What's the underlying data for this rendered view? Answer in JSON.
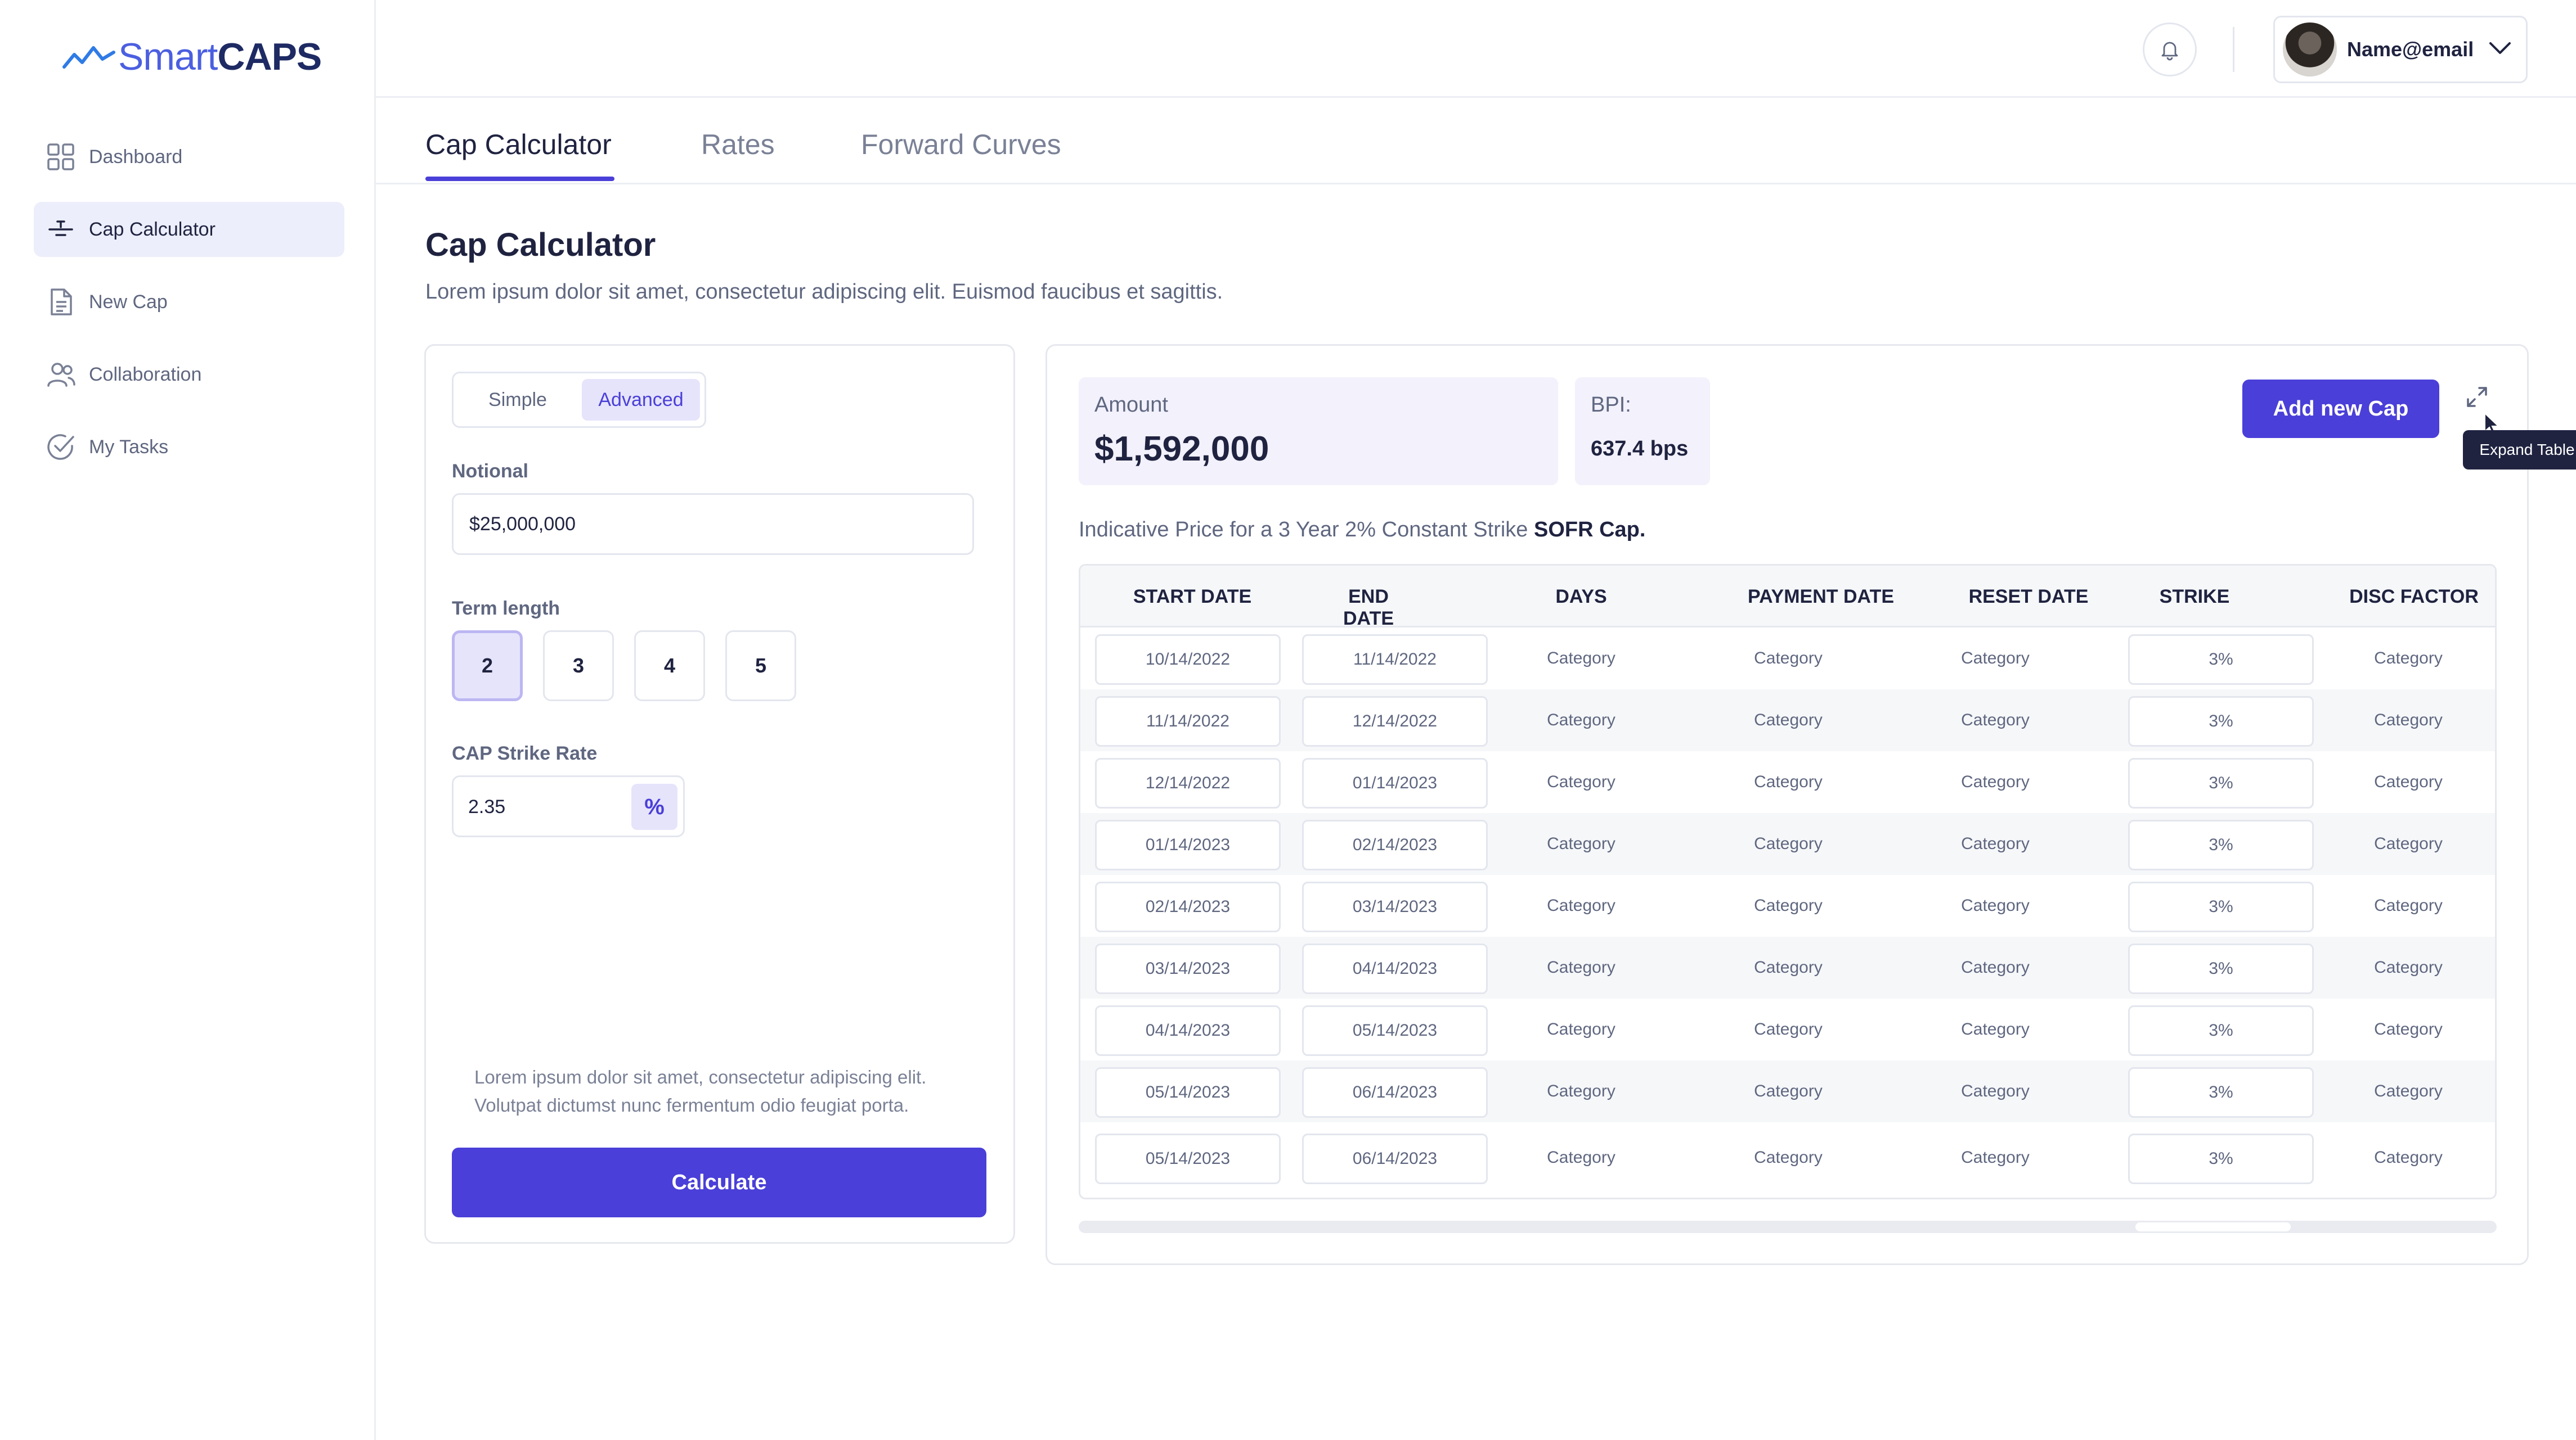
{
  "app": {
    "logo_smart": "Smart",
    "logo_caps": "CAPS"
  },
  "sidebar": {
    "items": [
      {
        "label": "Dashboard",
        "icon": "grid-icon",
        "active": false
      },
      {
        "label": "Cap Calculator",
        "icon": "sliders-icon",
        "active": true
      },
      {
        "label": "New Cap",
        "icon": "document-icon",
        "active": false
      },
      {
        "label": "Collaboration",
        "icon": "users-icon",
        "active": false
      },
      {
        "label": "My Tasks",
        "icon": "check-circle-icon",
        "active": false
      }
    ]
  },
  "header": {
    "user_email": "Name@email"
  },
  "tabs": [
    {
      "label": "Cap Calculator",
      "active": true
    },
    {
      "label": "Rates",
      "active": false
    },
    {
      "label": "Forward Curves",
      "active": false
    }
  ],
  "page": {
    "title": "Cap Calculator",
    "subtitle": "Lorem ipsum dolor sit amet, consectetur adipiscing elit. Euismod faucibus et sagittis."
  },
  "form": {
    "mode_simple": "Simple",
    "mode_advanced": "Advanced",
    "notional_label": "Notional",
    "notional_value": "$25,000,000",
    "term_label": "Term length",
    "terms": [
      "2",
      "3",
      "4",
      "5"
    ],
    "term_selected": "2",
    "strike_label": "CAP Strike Rate",
    "strike_value": "2.35",
    "strike_unit": "%",
    "note": "Lorem ipsum dolor sit amet, consectetur adipiscing elit. Volutpat dictumst nunc fermentum odio feugiat porta.",
    "calculate_label": "Calculate"
  },
  "results": {
    "amount_label": "Amount",
    "amount_value": "$1,592,000",
    "bpi_label": "BPI:",
    "bpi_value": "637.4 bps",
    "add_button": "Add new Cap",
    "expand_tooltip": "Expand Table",
    "indicative_prefix": "Indicative Price for a 3 Year 2% Constant Strike ",
    "indicative_bold": "SOFR Cap."
  },
  "table": {
    "headers": [
      "START DATE",
      "END DATE",
      "DAYS",
      "PAYMENT DATE",
      "RESET DATE",
      "STRIKE",
      "DISC FACTOR"
    ],
    "rows": [
      [
        "10/14/2022",
        "11/14/2022",
        "Category",
        "Category",
        "Category",
        "3%",
        "Category"
      ],
      [
        "11/14/2022",
        "12/14/2022",
        "Category",
        "Category",
        "Category",
        "3%",
        "Category"
      ],
      [
        "12/14/2022",
        "01/14/2023",
        "Category",
        "Category",
        "Category",
        "3%",
        "Category"
      ],
      [
        "01/14/2023",
        "02/14/2023",
        "Category",
        "Category",
        "Category",
        "3%",
        "Category"
      ],
      [
        "02/14/2023",
        "03/14/2023",
        "Category",
        "Category",
        "Category",
        "3%",
        "Category"
      ],
      [
        "03/14/2023",
        "04/14/2023",
        "Category",
        "Category",
        "Category",
        "3%",
        "Category"
      ],
      [
        "04/14/2023",
        "05/14/2023",
        "Category",
        "Category",
        "Category",
        "3%",
        "Category"
      ],
      [
        "05/14/2023",
        "06/14/2023",
        "Category",
        "Category",
        "Category",
        "3%",
        "Category"
      ],
      [
        "05/14/2023",
        "06/14/2023",
        "Category",
        "Category",
        "Category",
        "3%",
        "Category"
      ]
    ]
  },
  "colors": {
    "accent": "#4a3fd8",
    "accent_soft": "#e6e4fb",
    "text_primary": "#1f2340",
    "text_muted": "#5f6780"
  }
}
